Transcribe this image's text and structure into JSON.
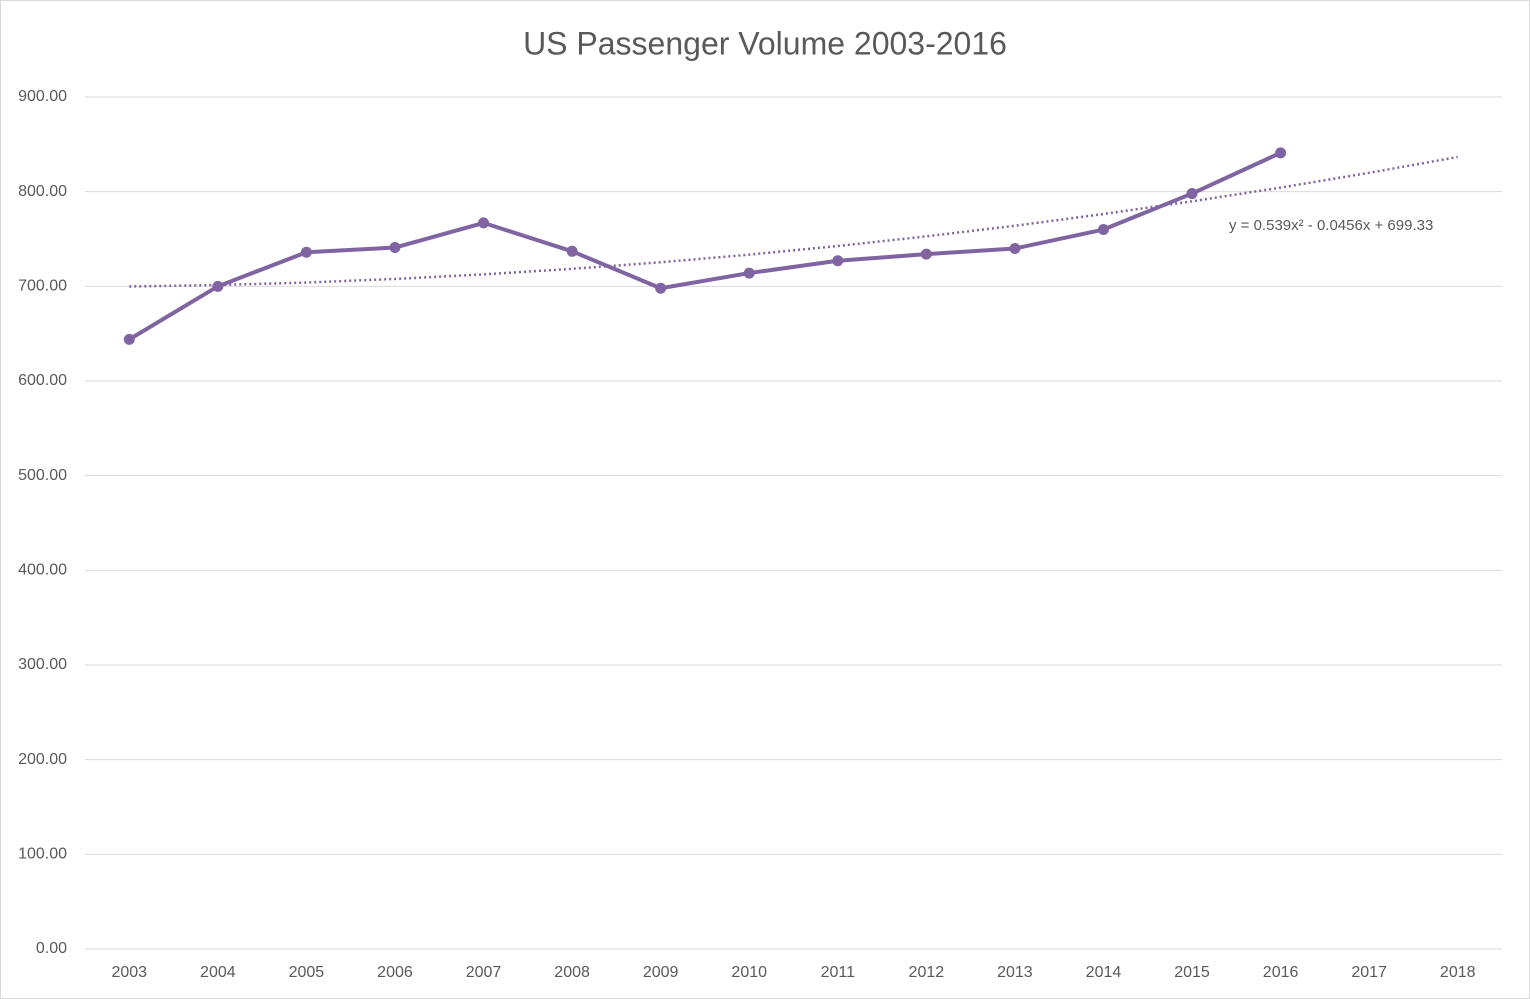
{
  "chart_data": {
    "type": "line",
    "title": "US Passenger Volume 2003-2016",
    "categories": [
      "2003",
      "2004",
      "2005",
      "2006",
      "2007",
      "2008",
      "2009",
      "2010",
      "2011",
      "2012",
      "2013",
      "2014",
      "2015",
      "2016",
      "2017",
      "2018"
    ],
    "series": [
      {
        "name": "US Passenger Volume",
        "color": "#8064a2",
        "values": [
          644,
          700,
          736,
          741,
          767,
          737,
          698,
          714,
          727,
          734,
          740,
          760,
          798,
          841,
          null,
          null
        ]
      }
    ],
    "trendline": {
      "color": "#8064a2",
      "values": [
        699.8,
        701.4,
        704.0,
        707.8,
        712.6,
        718.5,
        725.4,
        733.5,
        742.6,
        752.8,
        764.0,
        776.4,
        789.8,
        804.3,
        819.9,
        836.6
      ]
    },
    "annotation": "y = 0.539x² - 0.0456x + 699.33",
    "ylim": [
      0,
      900
    ],
    "yticks": [
      {
        "value": 0,
        "label": "0.00"
      },
      {
        "value": 100,
        "label": "100.00"
      },
      {
        "value": 200,
        "label": "200.00"
      },
      {
        "value": 300,
        "label": "300.00"
      },
      {
        "value": 400,
        "label": "400.00"
      },
      {
        "value": 500,
        "label": "500.00"
      },
      {
        "value": 600,
        "label": "600.00"
      },
      {
        "value": 700,
        "label": "700.00"
      },
      {
        "value": 800,
        "label": "800.00"
      },
      {
        "value": 900,
        "label": "900.00"
      }
    ],
    "grid": true
  }
}
